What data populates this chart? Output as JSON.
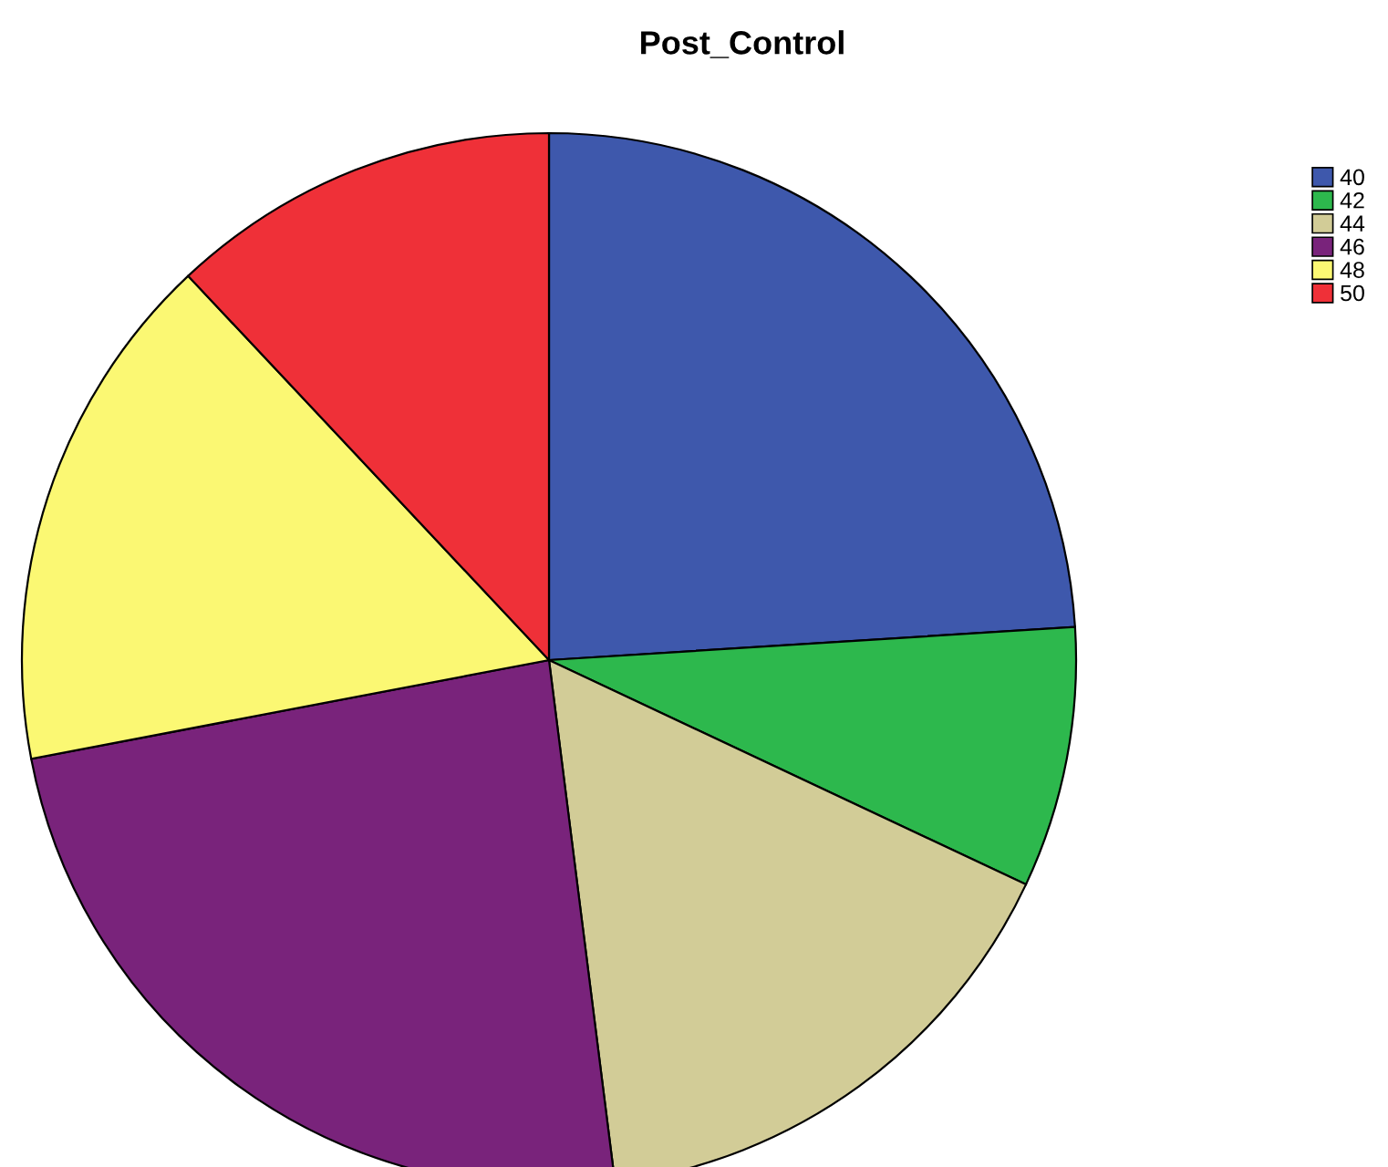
{
  "chart_data": {
    "type": "pie",
    "title": "Post_Control",
    "categories": [
      "40",
      "42",
      "44",
      "46",
      "48",
      "50"
    ],
    "values": [
      24,
      8,
      16,
      24,
      16,
      12
    ],
    "colors": [
      "#3e58ac",
      "#2db84d",
      "#d2cc97",
      "#79237b",
      "#fbf873",
      "#ef3038"
    ],
    "legend": "top right"
  }
}
